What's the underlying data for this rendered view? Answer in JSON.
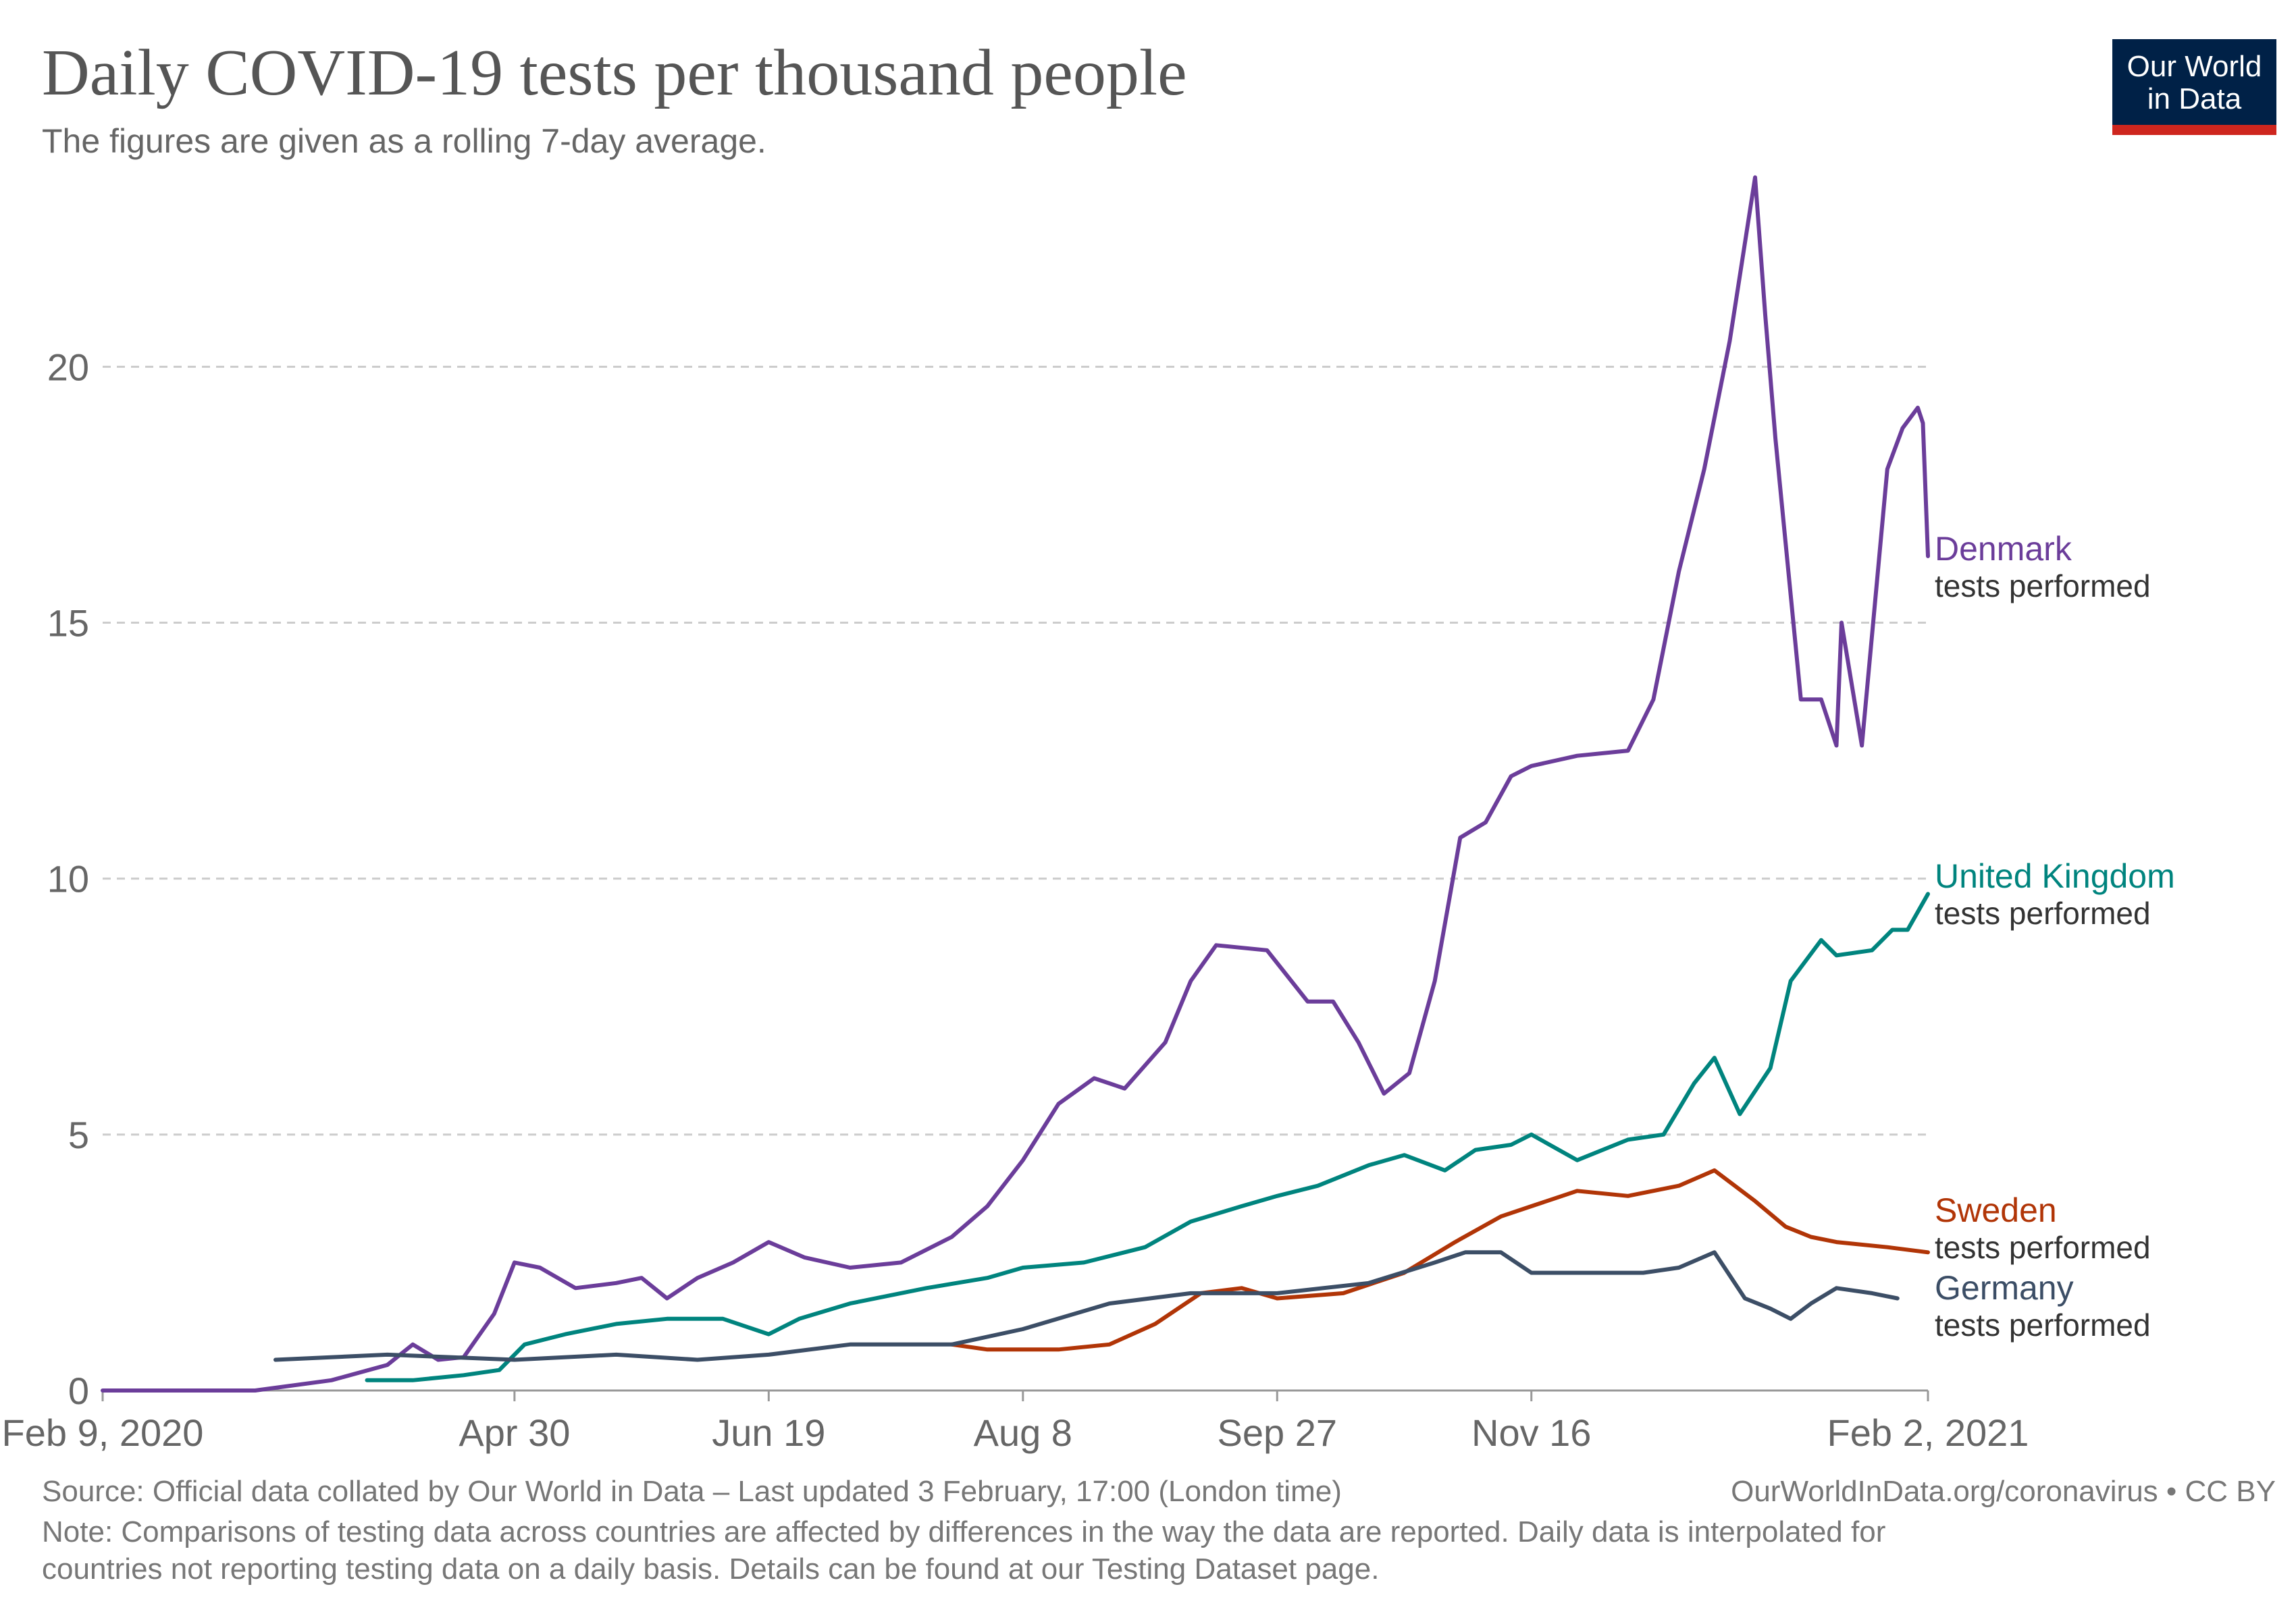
{
  "header": {
    "title": "Daily COVID-19 tests per thousand people",
    "subtitle": "The figures are given as a rolling 7-day average."
  },
  "logo": {
    "line1": "Our World",
    "line2": "in Data",
    "bg_color": "#002147",
    "stripe_color": "#ce261e"
  },
  "footer": {
    "source": "Source: Official data collated by Our World in Data – Last updated 3 February, 17:00 (London time)",
    "site": "OurWorldInData.org/coronavirus • CC BY",
    "note_line1": "Note: Comparisons of testing data across countries are affected by differences in the way the data are reported. Daily data is interpolated for",
    "note_line2": "countries not reporting testing data on a daily basis. Details can be found at our Testing Dataset page."
  },
  "chart_data": {
    "type": "line",
    "title": "Daily COVID-19 tests per thousand people",
    "subtitle": "The figures are given as a rolling 7-day average.",
    "xlabel": "",
    "ylabel": "",
    "x_start": "2020-02-09",
    "x_end": "2021-02-02",
    "xlim": [
      "2020-02-09",
      "2021-02-02"
    ],
    "ylim": [
      0,
      24
    ],
    "yticks": [
      0,
      5,
      10,
      15,
      20
    ],
    "y_tick_labels": [
      "0",
      "5",
      "10",
      "15",
      "20"
    ],
    "xticks": [
      "2020-02-09",
      "2020-04-30",
      "2020-06-19",
      "2020-08-08",
      "2020-09-27",
      "2020-11-16",
      "2021-02-02"
    ],
    "x_tick_labels": [
      "Feb 9, 2020",
      "Apr 30",
      "Jun 19",
      "Aug 8",
      "Sep 27",
      "Nov 16",
      "Feb 2, 2021"
    ],
    "grid": "horizontal dashed",
    "legend": "end-of-line labels",
    "series": [
      {
        "name": "Denmark",
        "sublabel": "tests performed",
        "color": "#6b3d9a",
        "points": [
          [
            "2020-02-09",
            0
          ],
          [
            "2020-03-10",
            0
          ],
          [
            "2020-03-25",
            0.2
          ],
          [
            "2020-04-05",
            0.5
          ],
          [
            "2020-04-10",
            0.9
          ],
          [
            "2020-04-15",
            0.6
          ],
          [
            "2020-04-20",
            0.65
          ],
          [
            "2020-04-26",
            1.5
          ],
          [
            "2020-04-30",
            2.5
          ],
          [
            "2020-05-05",
            2.4
          ],
          [
            "2020-05-12",
            2.0
          ],
          [
            "2020-05-20",
            2.1
          ],
          [
            "2020-05-25",
            2.2
          ],
          [
            "2020-05-30",
            1.8
          ],
          [
            "2020-06-05",
            2.2
          ],
          [
            "2020-06-12",
            2.5
          ],
          [
            "2020-06-19",
            2.9
          ],
          [
            "2020-06-26",
            2.6
          ],
          [
            "2020-07-05",
            2.4
          ],
          [
            "2020-07-15",
            2.5
          ],
          [
            "2020-07-25",
            3.0
          ],
          [
            "2020-08-01",
            3.6
          ],
          [
            "2020-08-08",
            4.5
          ],
          [
            "2020-08-15",
            5.6
          ],
          [
            "2020-08-22",
            6.1
          ],
          [
            "2020-08-28",
            5.9
          ],
          [
            "2020-09-05",
            6.8
          ],
          [
            "2020-09-10",
            8.0
          ],
          [
            "2020-09-15",
            8.7
          ],
          [
            "2020-09-25",
            8.6
          ],
          [
            "2020-10-03",
            7.6
          ],
          [
            "2020-10-08",
            7.6
          ],
          [
            "2020-10-13",
            6.8
          ],
          [
            "2020-10-18",
            5.8
          ],
          [
            "2020-10-23",
            6.2
          ],
          [
            "2020-10-28",
            8.0
          ],
          [
            "2020-11-02",
            10.8
          ],
          [
            "2020-11-07",
            11.1
          ],
          [
            "2020-11-12",
            12.0
          ],
          [
            "2020-11-16",
            12.2
          ],
          [
            "2020-11-25",
            12.4
          ],
          [
            "2020-12-05",
            12.5
          ],
          [
            "2020-12-10",
            13.5
          ],
          [
            "2020-12-15",
            16.0
          ],
          [
            "2020-12-20",
            18.0
          ],
          [
            "2020-12-25",
            20.5
          ],
          [
            "2020-12-30",
            23.7
          ],
          [
            "2021-01-01",
            21.0
          ],
          [
            "2021-01-03",
            18.6
          ],
          [
            "2021-01-08",
            13.5
          ],
          [
            "2021-01-12",
            13.5
          ],
          [
            "2021-01-15",
            12.6
          ],
          [
            "2021-01-16",
            15.0
          ],
          [
            "2021-01-20",
            12.6
          ],
          [
            "2021-01-25",
            18.0
          ],
          [
            "2021-01-28",
            18.8
          ],
          [
            "2021-01-31",
            19.2
          ],
          [
            "2021-02-01",
            18.9
          ],
          [
            "2021-02-02",
            16.3
          ]
        ]
      },
      {
        "name": "United Kingdom",
        "sublabel": "tests performed",
        "color": "#00847e",
        "points": [
          [
            "2020-04-01",
            0.2
          ],
          [
            "2020-04-10",
            0.2
          ],
          [
            "2020-04-20",
            0.3
          ],
          [
            "2020-04-27",
            0.4
          ],
          [
            "2020-05-02",
            0.9
          ],
          [
            "2020-05-10",
            1.1
          ],
          [
            "2020-05-20",
            1.3
          ],
          [
            "2020-05-30",
            1.4
          ],
          [
            "2020-06-10",
            1.4
          ],
          [
            "2020-06-19",
            1.1
          ],
          [
            "2020-06-25",
            1.4
          ],
          [
            "2020-07-05",
            1.7
          ],
          [
            "2020-07-20",
            2.0
          ],
          [
            "2020-08-01",
            2.2
          ],
          [
            "2020-08-08",
            2.4
          ],
          [
            "2020-08-20",
            2.5
          ],
          [
            "2020-09-01",
            2.8
          ],
          [
            "2020-09-10",
            3.3
          ],
          [
            "2020-09-20",
            3.6
          ],
          [
            "2020-09-27",
            3.8
          ],
          [
            "2020-10-05",
            4.0
          ],
          [
            "2020-10-15",
            4.4
          ],
          [
            "2020-10-22",
            4.6
          ],
          [
            "2020-10-30",
            4.3
          ],
          [
            "2020-11-05",
            4.7
          ],
          [
            "2020-11-12",
            4.8
          ],
          [
            "2020-11-16",
            5.0
          ],
          [
            "2020-11-25",
            4.5
          ],
          [
            "2020-12-05",
            4.9
          ],
          [
            "2020-12-12",
            5.0
          ],
          [
            "2020-12-18",
            6.0
          ],
          [
            "2020-12-22",
            6.5
          ],
          [
            "2020-12-27",
            5.4
          ],
          [
            "2021-01-02",
            6.3
          ],
          [
            "2021-01-06",
            8.0
          ],
          [
            "2021-01-12",
            8.8
          ],
          [
            "2021-01-15",
            8.5
          ],
          [
            "2021-01-22",
            8.6
          ],
          [
            "2021-01-26",
            9.0
          ],
          [
            "2021-01-29",
            9.0
          ],
          [
            "2021-02-02",
            9.7
          ]
        ]
      },
      {
        "name": "Sweden",
        "sublabel": "tests performed",
        "color": "#b13507",
        "points": [
          [
            "2020-07-25",
            0.9
          ],
          [
            "2020-08-01",
            0.8
          ],
          [
            "2020-08-15",
            0.8
          ],
          [
            "2020-08-25",
            0.9
          ],
          [
            "2020-09-03",
            1.3
          ],
          [
            "2020-09-12",
            1.9
          ],
          [
            "2020-09-20",
            2.0
          ],
          [
            "2020-09-27",
            1.8
          ],
          [
            "2020-10-10",
            1.9
          ],
          [
            "2020-10-22",
            2.3
          ],
          [
            "2020-11-01",
            2.9
          ],
          [
            "2020-11-10",
            3.4
          ],
          [
            "2020-11-16",
            3.6
          ],
          [
            "2020-11-25",
            3.9
          ],
          [
            "2020-12-05",
            3.8
          ],
          [
            "2020-12-15",
            4.0
          ],
          [
            "2020-12-22",
            4.3
          ],
          [
            "2020-12-30",
            3.7
          ],
          [
            "2021-01-05",
            3.2
          ],
          [
            "2021-01-10",
            3.0
          ],
          [
            "2021-01-15",
            2.9
          ],
          [
            "2021-01-25",
            2.8
          ],
          [
            "2021-02-02",
            2.7
          ]
        ]
      },
      {
        "name": "Germany",
        "sublabel": "tests performed",
        "color": "#3c4e66",
        "points": [
          [
            "2020-03-14",
            0.6
          ],
          [
            "2020-04-05",
            0.7
          ],
          [
            "2020-04-30",
            0.6
          ],
          [
            "2020-05-20",
            0.7
          ],
          [
            "2020-06-05",
            0.6
          ],
          [
            "2020-06-19",
            0.7
          ],
          [
            "2020-07-05",
            0.9
          ],
          [
            "2020-07-25",
            0.9
          ],
          [
            "2020-08-08",
            1.2
          ],
          [
            "2020-08-25",
            1.7
          ],
          [
            "2020-09-10",
            1.9
          ],
          [
            "2020-09-27",
            1.9
          ],
          [
            "2020-10-15",
            2.1
          ],
          [
            "2020-10-28",
            2.5
          ],
          [
            "2020-11-03",
            2.7
          ],
          [
            "2020-11-10",
            2.7
          ],
          [
            "2020-11-16",
            2.3
          ],
          [
            "2020-11-25",
            2.3
          ],
          [
            "2020-12-08",
            2.3
          ],
          [
            "2020-12-15",
            2.4
          ],
          [
            "2020-12-22",
            2.7
          ],
          [
            "2020-12-28",
            1.8
          ],
          [
            "2021-01-02",
            1.6
          ],
          [
            "2021-01-06",
            1.4
          ],
          [
            "2021-01-10",
            1.7
          ],
          [
            "2021-01-15",
            2.0
          ],
          [
            "2021-01-22",
            1.9
          ],
          [
            "2021-01-27",
            1.8
          ]
        ]
      }
    ]
  }
}
